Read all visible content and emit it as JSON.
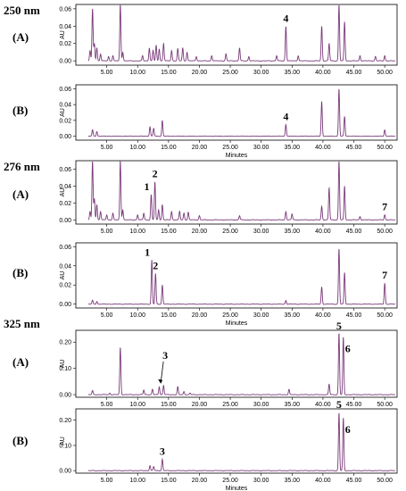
{
  "chart_data": {
    "type": "line",
    "x_unit_label": "Minutes",
    "y_unit_label": "AU",
    "x_ticks": [
      "5.00",
      "10.00",
      "15.00",
      "20.00",
      "25.00",
      "30.00",
      "35.00",
      "40.00",
      "45.00",
      "50.00"
    ],
    "xlim": [
      0,
      52
    ],
    "groups": [
      {
        "wavelength": "250 nm",
        "panels": [
          {
            "label": "(A)",
            "ylim": [
              -0.005,
              0.065
            ],
            "y_ticks": [
              "0.00",
              "0.02",
              "0.04",
              "0.06"
            ],
            "show_xlabel": false,
            "peaks": [
              [
                2.3,
                0.012
              ],
              [
                2.7,
                0.06
              ],
              [
                3.0,
                0.02
              ],
              [
                3.4,
                0.015
              ],
              [
                4.0,
                0.008
              ],
              [
                5.3,
                0.005
              ],
              [
                6.0,
                0.006
              ],
              [
                7.2,
                0.065
              ],
              [
                7.6,
                0.01
              ],
              [
                10.8,
                0.006
              ],
              [
                11.9,
                0.015
              ],
              [
                12.5,
                0.012
              ],
              [
                13.0,
                0.018
              ],
              [
                13.5,
                0.014
              ],
              [
                14.2,
                0.02
              ],
              [
                15.5,
                0.012
              ],
              [
                16.5,
                0.014
              ],
              [
                17.3,
                0.015
              ],
              [
                18.0,
                0.01
              ],
              [
                19.5,
                0.005
              ],
              [
                22.0,
                0.006
              ],
              [
                24.3,
                0.008
              ],
              [
                26.5,
                0.015
              ],
              [
                28.0,
                0.005
              ],
              [
                32.5,
                0.006
              ],
              [
                34.0,
                0.04
              ],
              [
                36.0,
                0.006
              ],
              [
                39.8,
                0.04
              ],
              [
                41.0,
                0.02
              ],
              [
                42.6,
                0.065
              ],
              [
                43.5,
                0.045
              ],
              [
                46.0,
                0.006
              ],
              [
                48.5,
                0.005
              ],
              [
                50.0,
                0.006
              ]
            ],
            "peak_labels": [
              {
                "text": "4",
                "x": 34.0,
                "y": 0.04
              }
            ]
          },
          {
            "label": "(B)",
            "ylim": [
              -0.005,
              0.065
            ],
            "y_ticks": [
              "0.00",
              "0.02",
              "0.04",
              "0.06"
            ],
            "show_xlabel": true,
            "peaks": [
              [
                2.7,
                0.008
              ],
              [
                3.4,
                0.006
              ],
              [
                12.0,
                0.012
              ],
              [
                12.6,
                0.01
              ],
              [
                14.0,
                0.02
              ],
              [
                34.0,
                0.015
              ],
              [
                39.8,
                0.044
              ],
              [
                42.6,
                0.06
              ],
              [
                43.5,
                0.025
              ],
              [
                50.0,
                0.008
              ]
            ],
            "peak_labels": [
              {
                "text": "4",
                "x": 34.0,
                "y": 0.015
              }
            ]
          }
        ]
      },
      {
        "wavelength": "276 nm",
        "panels": [
          {
            "label": "(A)",
            "ylim": [
              -0.005,
              0.07
            ],
            "y_ticks": [
              "0.00",
              "0.02",
              "0.04",
              "0.06"
            ],
            "show_xlabel": false,
            "peaks": [
              [
                2.3,
                0.01
              ],
              [
                2.7,
                0.07
              ],
              [
                3.0,
                0.025
              ],
              [
                3.4,
                0.018
              ],
              [
                4.0,
                0.01
              ],
              [
                5.0,
                0.006
              ],
              [
                6.0,
                0.008
              ],
              [
                7.2,
                0.07
              ],
              [
                7.6,
                0.012
              ],
              [
                10.0,
                0.006
              ],
              [
                11.0,
                0.008
              ],
              [
                12.2,
                0.03
              ],
              [
                12.8,
                0.045
              ],
              [
                13.4,
                0.012
              ],
              [
                14.0,
                0.018
              ],
              [
                15.5,
                0.01
              ],
              [
                16.8,
                0.01
              ],
              [
                17.5,
                0.008
              ],
              [
                18.2,
                0.009
              ],
              [
                20.0,
                0.005
              ],
              [
                26.5,
                0.005
              ],
              [
                34.0,
                0.01
              ],
              [
                35.0,
                0.007
              ],
              [
                39.8,
                0.016
              ],
              [
                41.0,
                0.038
              ],
              [
                42.6,
                0.07
              ],
              [
                43.5,
                0.04
              ],
              [
                46.0,
                0.004
              ],
              [
                50.0,
                0.006
              ]
            ],
            "peak_labels": [
              {
                "text": "1",
                "x": 12.2,
                "y": 0.03
              },
              {
                "text": "2",
                "x": 12.8,
                "y": 0.045
              },
              {
                "text": "7",
                "x": 50.0,
                "y": 0.006
              }
            ]
          },
          {
            "label": "(B)",
            "ylim": [
              -0.004,
              0.064
            ],
            "y_ticks": [
              "0.00",
              "0.02",
              "0.04",
              "0.06"
            ],
            "show_xlabel": true,
            "peaks": [
              [
                2.7,
                0.004
              ],
              [
                3.4,
                0.003
              ],
              [
                12.3,
                0.046
              ],
              [
                12.9,
                0.032
              ],
              [
                14.0,
                0.02
              ],
              [
                34.0,
                0.004
              ],
              [
                39.8,
                0.018
              ],
              [
                42.6,
                0.058
              ],
              [
                43.5,
                0.033
              ],
              [
                50.0,
                0.022
              ]
            ],
            "peak_labels": [
              {
                "text": "1",
                "x": 12.3,
                "y": 0.046
              },
              {
                "text": "2",
                "x": 12.9,
                "y": 0.032
              },
              {
                "text": "7",
                "x": 50.0,
                "y": 0.022
              }
            ]
          }
        ]
      },
      {
        "wavelength": "325 nm",
        "panels": [
          {
            "label": "(A)",
            "ylim": [
              -0.01,
              0.245
            ],
            "y_ticks": [
              "0.00",
              "0.10",
              "0.20"
            ],
            "show_xlabel": false,
            "peaks": [
              [
                2.7,
                0.015
              ],
              [
                5.5,
                0.006
              ],
              [
                7.2,
                0.18
              ],
              [
                11.0,
                0.018
              ],
              [
                12.4,
                0.02
              ],
              [
                13.5,
                0.03
              ],
              [
                14.2,
                0.035
              ],
              [
                16.5,
                0.03
              ],
              [
                17.5,
                0.012
              ],
              [
                18.5,
                0.006
              ],
              [
                34.5,
                0.02
              ],
              [
                41.0,
                0.04
              ],
              [
                42.6,
                0.235
              ],
              [
                43.3,
                0.22
              ]
            ],
            "peak_labels": [
              {
                "text": "3",
                "x": 13.6,
                "y": 0.035,
                "arrow": true
              },
              {
                "text": "5",
                "x": 42.6,
                "y": 0.235
              },
              {
                "text": "6",
                "x": 43.3,
                "y": 0.22
              }
            ]
          },
          {
            "label": "(B)",
            "ylim": [
              -0.01,
              0.245
            ],
            "y_ticks": [
              "0.00",
              "0.10",
              "0.20"
            ],
            "show_xlabel": true,
            "peaks": [
              [
                12.0,
                0.02
              ],
              [
                12.6,
                0.016
              ],
              [
                14.0,
                0.045
              ],
              [
                42.6,
                0.23
              ],
              [
                43.3,
                0.21
              ]
            ],
            "peak_labels": [
              {
                "text": "3",
                "x": 14.0,
                "y": 0.045
              },
              {
                "text": "5",
                "x": 42.6,
                "y": 0.23
              },
              {
                "text": "6",
                "x": 43.3,
                "y": 0.21
              }
            ]
          }
        ]
      }
    ]
  }
}
